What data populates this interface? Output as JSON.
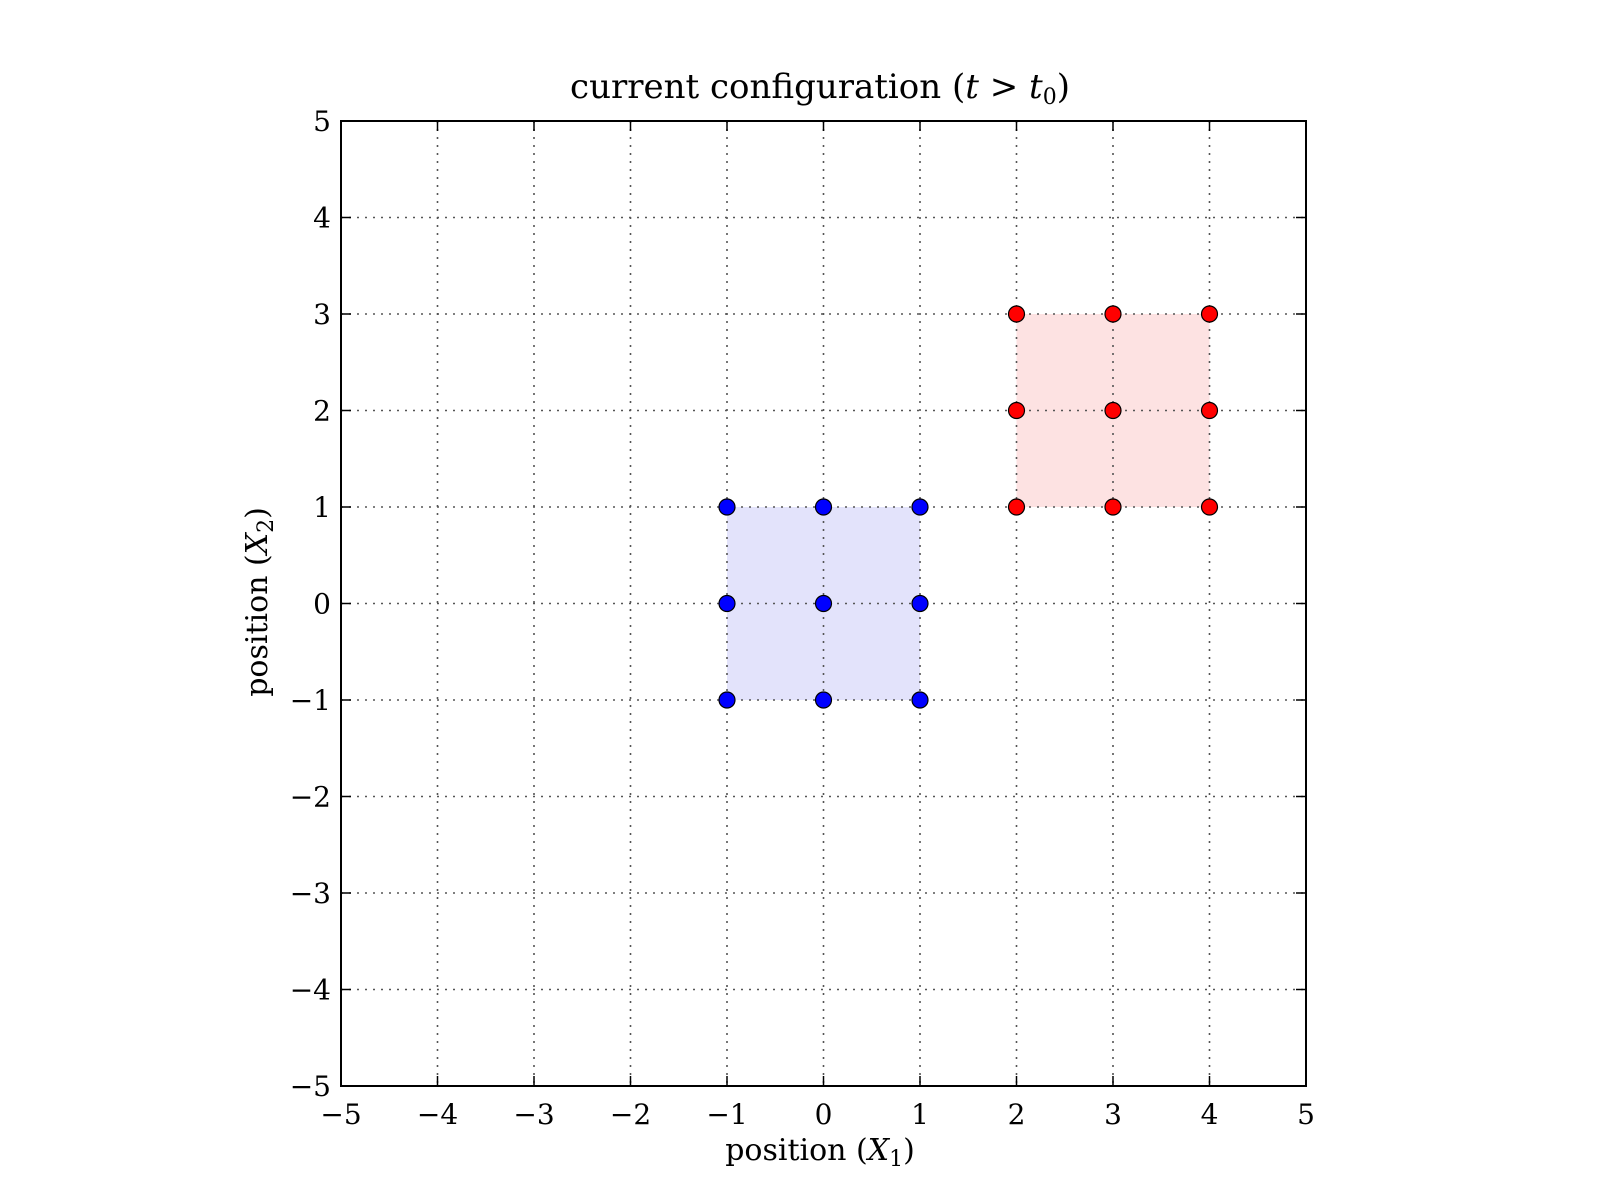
{
  "chart_data": {
    "type": "scatter",
    "title": {
      "text": "current configuration (",
      "math_var": "t",
      "operator": " > ",
      "math_var2": "t",
      "math_sub2": "0",
      "close": ")"
    },
    "xlabel": {
      "text": "position (",
      "math_var": "X",
      "math_sub": "1",
      "close": ")"
    },
    "ylabel": {
      "text": "position (",
      "math_var": "X",
      "math_sub": "2",
      "close": ")"
    },
    "xlim": [
      -5,
      5
    ],
    "ylim": [
      -5,
      5
    ],
    "xticks": [
      -5,
      -4,
      -3,
      -2,
      -1,
      0,
      1,
      2,
      3,
      4,
      5
    ],
    "yticks": [
      -5,
      -4,
      -3,
      -2,
      -1,
      0,
      1,
      2,
      3,
      4,
      5
    ],
    "xtick_labels": [
      "−5",
      "−4",
      "−3",
      "−2",
      "−1",
      "0",
      "1",
      "2",
      "3",
      "4",
      "5"
    ],
    "ytick_labels": [
      "−5",
      "−4",
      "−3",
      "−2",
      "−1",
      "0",
      "1",
      "2",
      "3",
      "4",
      "5"
    ],
    "grid": true,
    "grid_style": "dotted",
    "regions": [
      {
        "x": [
          -1,
          1
        ],
        "y": [
          -1,
          1
        ],
        "color": "#e3e3fb"
      },
      {
        "x": [
          2,
          4
        ],
        "y": [
          1,
          3
        ],
        "color": "#fde2e2"
      }
    ],
    "series": [
      {
        "color": "#0000ff",
        "x": [
          -1,
          0,
          1,
          -1,
          0,
          1,
          -1,
          0,
          1
        ],
        "y": [
          1,
          1,
          1,
          0,
          0,
          0,
          -1,
          -1,
          -1
        ]
      },
      {
        "color": "#ff0000",
        "x": [
          2,
          3,
          4,
          2,
          3,
          4,
          2,
          3,
          4
        ],
        "y": [
          3,
          3,
          3,
          2,
          2,
          2,
          1,
          1,
          1
        ]
      }
    ]
  }
}
